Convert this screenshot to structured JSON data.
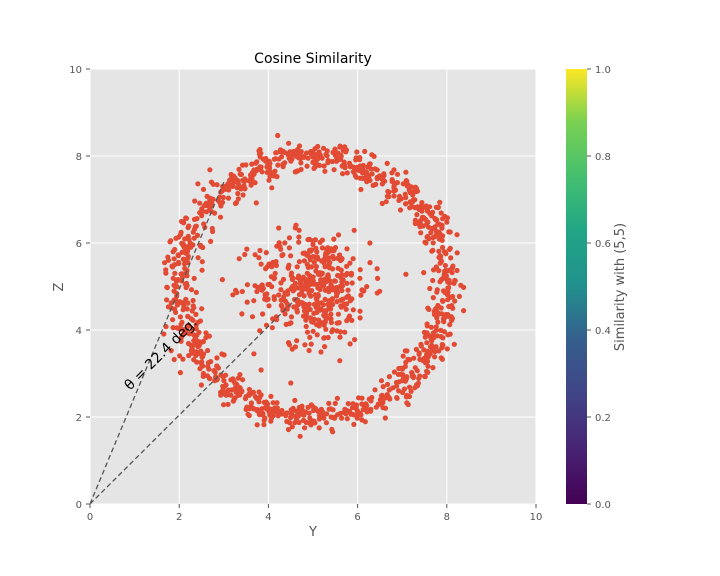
{
  "chart_data": {
    "type": "scatter",
    "title": "Cosine Similarity",
    "xlabel": "Y",
    "ylabel": "Z",
    "xlim": [
      0,
      10
    ],
    "ylim": [
      0,
      10
    ],
    "xticks": [
      "0",
      "2",
      "4",
      "6",
      "8",
      "10"
    ],
    "yticks": [
      "0",
      "2",
      "4",
      "6",
      "8",
      "10"
    ],
    "grid": true,
    "point_color": "#E24A33",
    "background_color": "#E5E5E5",
    "series": [
      {
        "kind": "ring",
        "center": [
          5,
          5
        ],
        "radius": 3.0,
        "radial_spread": 0.18,
        "count": 1100
      },
      {
        "kind": "cluster",
        "center": [
          5,
          5
        ],
        "spread": 0.65,
        "count": 420
      }
    ],
    "annotation": {
      "text": "θ = 22.4 deg.",
      "rotation_deg": 45,
      "lines": [
        {
          "from": [
            0,
            0
          ],
          "to": [
            3.0,
            7.4
          ]
        },
        {
          "from": [
            0,
            0
          ],
          "to": [
            4.7,
            4.8
          ]
        }
      ]
    },
    "colorbar": {
      "label": "Similarity with (5,5)",
      "range": [
        0.0,
        1.0
      ],
      "ticks": [
        "0.0",
        "0.2",
        "0.4",
        "0.6",
        "0.8",
        "1.0"
      ],
      "colormap": "viridis"
    }
  }
}
